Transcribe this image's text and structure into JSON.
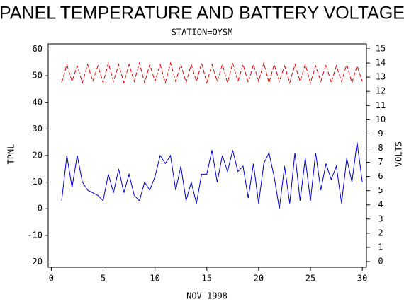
{
  "chart_data": {
    "type": "line",
    "title": "PANEL TEMPERATURE AND BATTERY VOLTAGE",
    "subtitle": "STATION=OYSM",
    "x_label": "NOV 1998",
    "y_label": "TPNL",
    "y2_label": "VOLTS",
    "x": [
      1,
      1.5,
      2,
      2.5,
      3,
      3.5,
      4,
      4.5,
      5,
      5.5,
      6,
      6.5,
      7,
      7.5,
      8,
      8.5,
      9,
      9.5,
      10,
      10.5,
      11,
      11.5,
      12,
      12.5,
      13,
      13.5,
      14,
      14.5,
      15,
      15.5,
      16,
      16.5,
      17,
      17.5,
      18,
      18.5,
      19,
      19.5,
      20,
      20.5,
      21,
      21.5,
      22,
      22.5,
      23,
      23.5,
      24,
      24.5,
      25,
      25.5,
      26,
      26.5,
      27,
      27.5,
      28,
      28.5,
      29,
      29.5,
      30
    ],
    "series": [
      {
        "name": "TPNL",
        "color": "#0000cc",
        "linestyle": "solid",
        "axis": "y",
        "values": [
          3,
          20,
          8,
          20,
          10,
          7,
          6,
          5,
          3,
          13,
          6,
          15,
          6,
          13,
          5,
          3,
          10,
          7,
          12,
          20,
          17,
          20,
          7,
          16,
          3,
          10,
          2,
          13,
          13,
          22,
          10,
          20,
          14,
          22,
          14,
          16,
          4,
          17,
          2,
          17,
          21,
          12,
          0,
          16,
          2,
          21,
          3,
          19,
          3,
          21,
          7,
          17,
          11,
          16,
          2,
          19,
          10,
          25,
          10
        ]
      },
      {
        "name": "VOLTS",
        "color": "#dd0000",
        "linestyle": "dashed",
        "axis": "y2",
        "values": [
          12.6,
          13.9,
          12.7,
          13.8,
          12.6,
          13.9,
          12.7,
          13.8,
          12.6,
          14.0,
          12.7,
          13.9,
          12.6,
          13.9,
          12.7,
          14.0,
          12.6,
          13.9,
          12.7,
          13.9,
          12.6,
          14.0,
          12.7,
          13.9,
          12.6,
          13.9,
          12.7,
          14.0,
          12.6,
          13.9,
          12.7,
          13.9,
          12.6,
          14.0,
          12.7,
          13.9,
          12.6,
          13.9,
          12.7,
          14.0,
          12.6,
          13.9,
          12.7,
          13.8,
          12.6,
          13.9,
          12.7,
          13.9,
          12.6,
          13.8,
          12.7,
          13.9,
          12.6,
          13.8,
          12.7,
          13.9,
          12.6,
          13.8,
          12.7
        ]
      }
    ],
    "xlim": [
      -0.3,
      30.4
    ],
    "xticks": [
      0,
      5,
      10,
      15,
      20,
      25,
      30
    ],
    "ylim": [
      -22,
      62
    ],
    "yticks": [
      -20,
      -10,
      0,
      10,
      20,
      30,
      40,
      50,
      60
    ],
    "y2lim": [
      -0.4,
      15.35
    ],
    "y2ticks": [
      0,
      1,
      2,
      3,
      4,
      5,
      6,
      7,
      8,
      9,
      10,
      11,
      12,
      13,
      14,
      15
    ]
  }
}
